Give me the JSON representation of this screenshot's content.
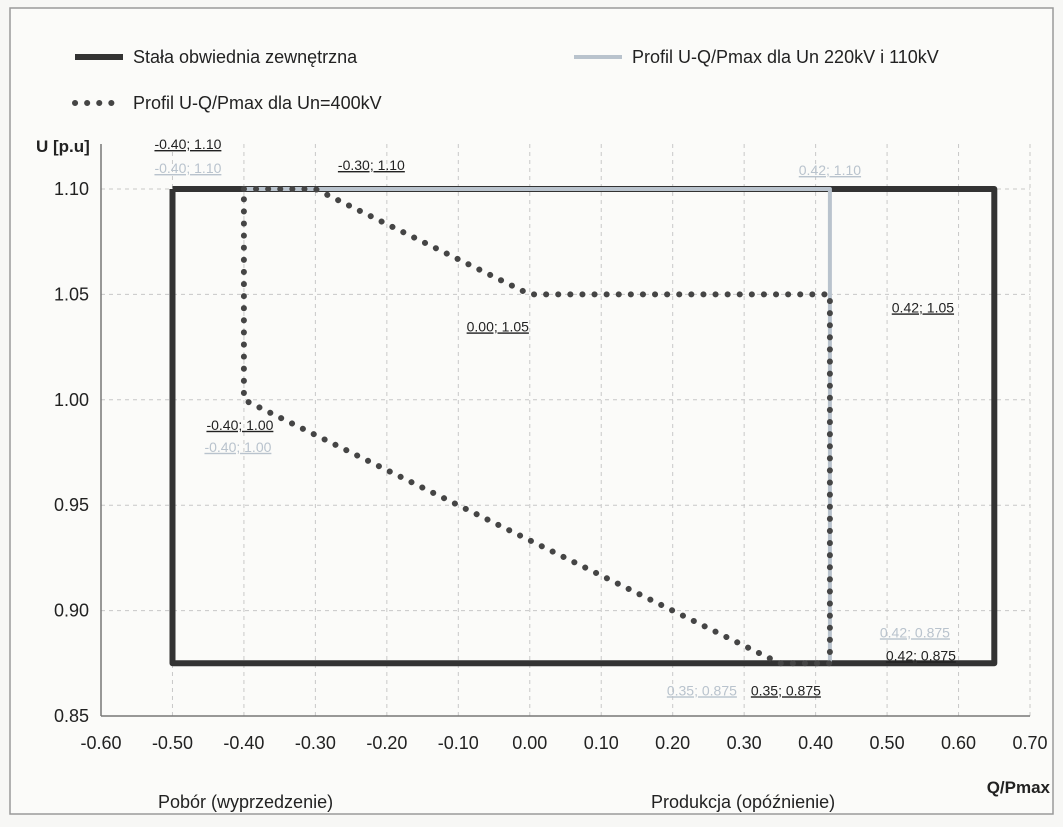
{
  "chart_data": {
    "type": "line",
    "xlabel": "Q/Pmax",
    "ylabel": "U [p.u]",
    "xlim": [
      -0.6,
      0.7
    ],
    "ylim": [
      0.85,
      1.1
    ],
    "x_ticks": [
      "-0.60",
      "-0.50",
      "-0.40",
      "-0.30",
      "-0.20",
      "-0.10",
      "0.00",
      "0.10",
      "0.20",
      "0.30",
      "0.40",
      "0.50",
      "0.60",
      "0.70"
    ],
    "y_ticks": [
      "0.85",
      "0.90",
      "0.95",
      "1.00",
      "1.05",
      "1.10"
    ],
    "grid": true,
    "legend_position": "top",
    "bottom_notes": [
      "Pobór (wyprzedzenie)",
      "Produkcja (opóźnienie)"
    ],
    "series": [
      {
        "name": "Stała obwiednia zewnętrzna",
        "style": "solid-thick",
        "color": "#333333",
        "points": [
          [
            -0.5,
            1.1
          ],
          [
            0.65,
            1.1
          ],
          [
            0.65,
            0.875
          ],
          [
            -0.5,
            0.875
          ],
          [
            -0.5,
            1.1
          ]
        ]
      },
      {
        "name": "Profil U-Q/Pmax dla Un 220kV i 110kV",
        "style": "solid-medium",
        "color": "#b9c3cd",
        "points": [
          [
            -0.4,
            1.1
          ],
          [
            0.42,
            1.1
          ],
          [
            0.42,
            0.875
          ]
        ]
      },
      {
        "name": "Profil U-Q/Pmax dla Un=400kV",
        "style": "dotted",
        "color": "#454545",
        "points": [
          [
            -0.4,
            1.1
          ],
          [
            -0.3,
            1.1
          ],
          [
            0.0,
            1.05
          ],
          [
            0.42,
            1.05
          ],
          [
            0.42,
            0.875
          ],
          [
            0.35,
            0.875
          ],
          [
            -0.4,
            1.0
          ],
          [
            -0.4,
            1.1
          ]
        ]
      }
    ],
    "annotations": [
      {
        "text": "-0.40; 1.10",
        "x": -0.4,
        "y": 1.1,
        "color": "#222222"
      },
      {
        "text": "-0.40; 1.10",
        "x": -0.4,
        "y": 1.1,
        "color": "#b9c3cd"
      },
      {
        "text": "-0.30; 1.10",
        "x": -0.3,
        "y": 1.1,
        "color": "#222222"
      },
      {
        "text": "0.42; 1.10",
        "x": 0.42,
        "y": 1.1,
        "color": "#b9c3cd"
      },
      {
        "text": "0.00; 1.05",
        "x": 0.0,
        "y": 1.05,
        "color": "#222222"
      },
      {
        "text": "0.42; 1.05",
        "x": 0.42,
        "y": 1.05,
        "color": "#222222"
      },
      {
        "text": "-0.40; 1.00",
        "x": -0.4,
        "y": 1.0,
        "color": "#222222"
      },
      {
        "text": "-0.40; 1.00",
        "x": -0.4,
        "y": 1.0,
        "color": "#b9c3cd"
      },
      {
        "text": "0.42; 0.875",
        "x": 0.42,
        "y": 0.875,
        "color": "#b9c3cd"
      },
      {
        "text": "0.42; 0.875",
        "x": 0.42,
        "y": 0.875,
        "color": "#222222"
      },
      {
        "text": "0.35; 0.875",
        "x": 0.35,
        "y": 0.875,
        "color": "#b9c3cd"
      },
      {
        "text": "0.35; 0.875",
        "x": 0.35,
        "y": 0.875,
        "color": "#222222"
      }
    ]
  }
}
